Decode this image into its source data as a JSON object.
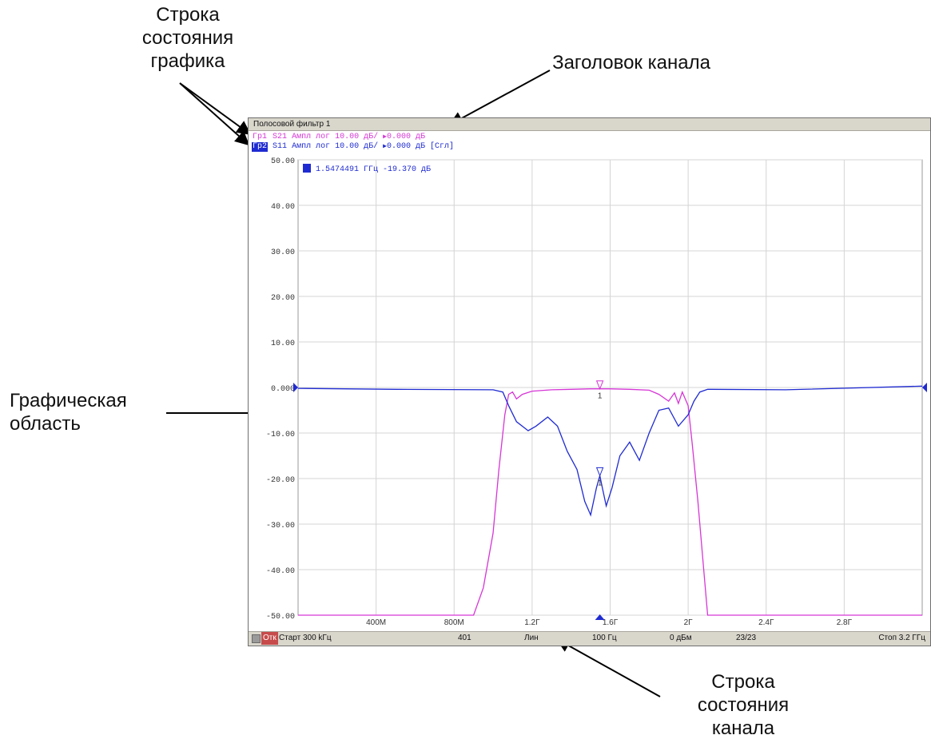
{
  "callouts": {
    "trace_status": "Строка состояния графика",
    "channel_title": "Заголовок канала",
    "graph_area": "Графическая область",
    "channel_status": "Строка состояния канала"
  },
  "window": {
    "title": "Полосовой фильтр 1",
    "trace1": {
      "tag": "Гр1",
      "param": "S21",
      "format": "Ампл лог",
      "scale": "10.00 дБ/",
      "ref": "0.000 дБ",
      "color": "#d636d6"
    },
    "trace2": {
      "tag": "Гр2",
      "param": "S11",
      "format": "Ампл лог",
      "scale": "10.00 дБ/",
      "ref": "0.000 дБ",
      "extra": "[Сгл]",
      "color": "#1f2bd1"
    },
    "marker_readout": {
      "index": "1",
      "text": "1.5474491 ГГц -19.370 дБ"
    },
    "status": {
      "off": "Отк",
      "start": "Старт  300 kГц",
      "points": "401",
      "sweep": "Лин",
      "ifbw": "100 Гц",
      "power": "0 дБм",
      "count": "23/23",
      "stop": "Стоп 3.2 ГГц"
    }
  },
  "chart_data": {
    "type": "line",
    "yticks": [
      "50.00",
      "40.00",
      "30.00",
      "20.00",
      "10.00",
      "0.000",
      "-10.00",
      "-20.00",
      "-30.00",
      "-40.00",
      "-50.00"
    ],
    "xticks": [
      "400M",
      "800M",
      "1.2Г",
      "1.6Г",
      "2Г",
      "2.4Г",
      "2.8Г"
    ],
    "ylim": [
      -50,
      50
    ],
    "xlim": [
      0.0003,
      3.2
    ],
    "x_unit": "ГГц",
    "y_unit": "дБ",
    "grid": true,
    "marker": {
      "x": 1.5474,
      "label": "1"
    },
    "series": [
      {
        "name": "S21",
        "color": "#d636d6",
        "x": [
          0.0003,
          0.8,
          0.9,
          0.95,
          1.0,
          1.03,
          1.06,
          1.08,
          1.1,
          1.12,
          1.15,
          1.2,
          1.3,
          1.4,
          1.5,
          1.6,
          1.7,
          1.8,
          1.85,
          1.9,
          1.93,
          1.95,
          1.97,
          2.0,
          2.02,
          2.05,
          2.08,
          2.1,
          2.15,
          3.2
        ],
        "y": [
          -50,
          -50,
          -50,
          -44,
          -32,
          -18,
          -6,
          -1.5,
          -1.0,
          -2.5,
          -1.5,
          -0.8,
          -0.5,
          -0.4,
          -0.3,
          -0.3,
          -0.4,
          -0.6,
          -1.5,
          -3.0,
          -1.2,
          -3.5,
          -1.0,
          -4.0,
          -12,
          -25,
          -40,
          -50,
          -50,
          -50
        ]
      },
      {
        "name": "S11",
        "color": "#1f2bd1",
        "x": [
          0.0003,
          0.5,
          1.0,
          1.05,
          1.08,
          1.12,
          1.18,
          1.22,
          1.28,
          1.33,
          1.38,
          1.43,
          1.47,
          1.5,
          1.53,
          1.5474,
          1.56,
          1.58,
          1.61,
          1.65,
          1.7,
          1.75,
          1.8,
          1.85,
          1.9,
          1.95,
          2.0,
          2.03,
          2.06,
          2.1,
          2.5,
          3.2
        ],
        "y": [
          -0.2,
          -0.4,
          -0.5,
          -1.0,
          -4.0,
          -7.5,
          -9.5,
          -8.5,
          -6.5,
          -8.5,
          -14,
          -18,
          -25,
          -28,
          -22,
          -19.37,
          -22,
          -26,
          -22,
          -15,
          -12,
          -16,
          -10,
          -5,
          -4.5,
          -8.5,
          -6,
          -3,
          -1,
          -0.4,
          -0.5,
          0.3
        ]
      }
    ]
  }
}
